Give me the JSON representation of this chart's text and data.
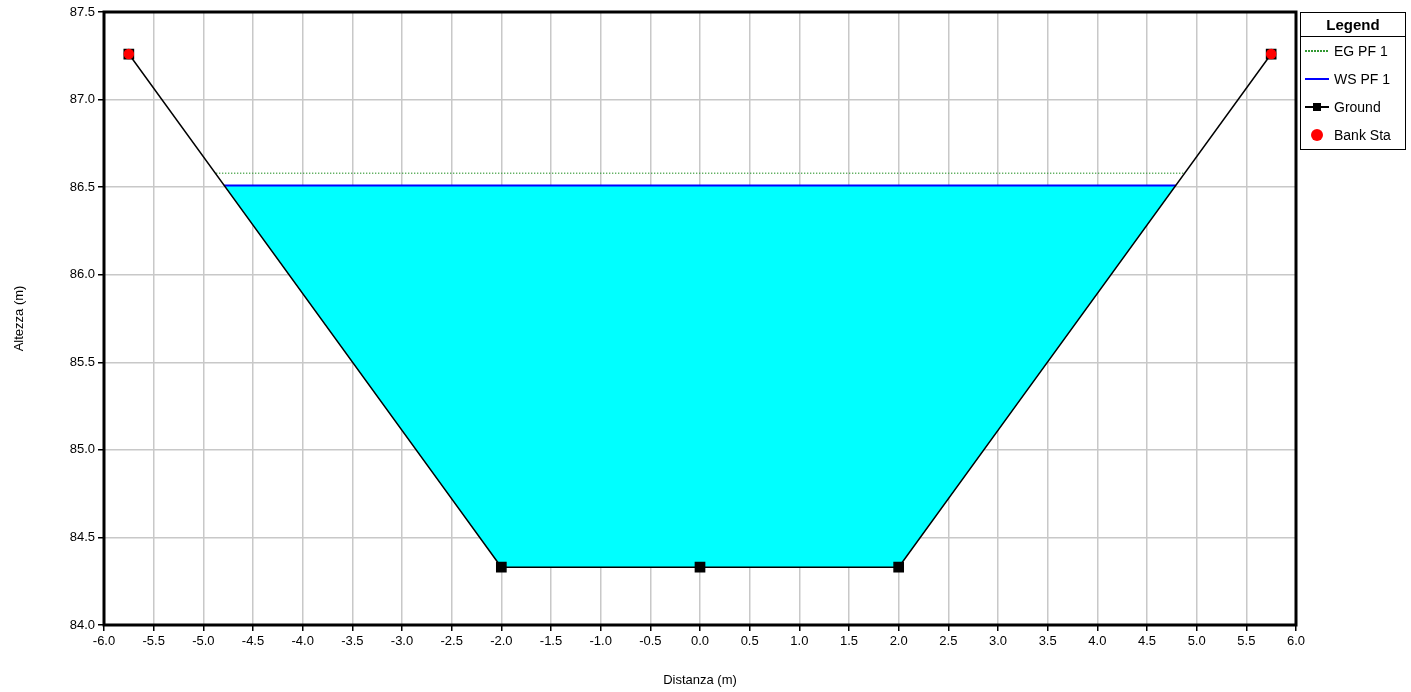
{
  "chart_data": {
    "type": "line",
    "xlabel": "Distanza (m)",
    "ylabel": "Altezza (m)",
    "legend_title": "Legend",
    "legend": "top right",
    "grid": true,
    "xlim": [
      -6,
      6
    ],
    "ylim": [
      84,
      87.5
    ],
    "xticks": [
      {
        "value": -6,
        "label": "-6.0"
      },
      {
        "value": -5.5,
        "label": "-5.5"
      },
      {
        "value": -5,
        "label": "-5.0"
      },
      {
        "value": -4.5,
        "label": "-4.5"
      },
      {
        "value": -4,
        "label": "-4.0"
      },
      {
        "value": -3.5,
        "label": "-3.5"
      },
      {
        "value": -3,
        "label": "-3.0"
      },
      {
        "value": -2.5,
        "label": "-2.5"
      },
      {
        "value": -2,
        "label": "-2.0"
      },
      {
        "value": -1.5,
        "label": "-1.5"
      },
      {
        "value": -1,
        "label": "-1.0"
      },
      {
        "value": -0.5,
        "label": "-0.5"
      },
      {
        "value": 0,
        "label": "0.0"
      },
      {
        "value": 0.5,
        "label": "0.5"
      },
      {
        "value": 1,
        "label": "1.0"
      },
      {
        "value": 1.5,
        "label": "1.5"
      },
      {
        "value": 2,
        "label": "2.0"
      },
      {
        "value": 2.5,
        "label": "2.5"
      },
      {
        "value": 3,
        "label": "3.0"
      },
      {
        "value": 3.5,
        "label": "3.5"
      },
      {
        "value": 4,
        "label": "4.0"
      },
      {
        "value": 4.5,
        "label": "4.5"
      },
      {
        "value": 5,
        "label": "5.0"
      },
      {
        "value": 5.5,
        "label": "5.5"
      },
      {
        "value": 6,
        "label": "6.0"
      }
    ],
    "yticks": [
      {
        "value": 84,
        "label": "84.0"
      },
      {
        "value": 84.5,
        "label": "84.5"
      },
      {
        "value": 85,
        "label": "85.0"
      },
      {
        "value": 85.5,
        "label": "85.5"
      },
      {
        "value": 86,
        "label": "86.0"
      },
      {
        "value": 86.5,
        "label": "86.5"
      },
      {
        "value": 87,
        "label": "87.0"
      },
      {
        "value": 87.5,
        "label": "87.5"
      }
    ],
    "series": [
      {
        "name": "EG PF 1",
        "type": "line",
        "line_style": "dotted",
        "marker": "none",
        "color": "#339933",
        "x": [
          -4.87,
          4.87
        ],
        "values": [
          86.58,
          86.58
        ]
      },
      {
        "name": "WS PF 1",
        "type": "area",
        "marker": "none",
        "color": "#0000ff",
        "x": [
          -4.79,
          4.79
        ],
        "values": [
          86.51,
          86.51
        ]
      },
      {
        "name": "Ground",
        "type": "line",
        "marker": "square",
        "color": "#000000",
        "x": [
          -5.75,
          -2,
          0,
          2,
          5.75
        ],
        "values": [
          87.26,
          84.33,
          84.33,
          84.33,
          87.26
        ]
      },
      {
        "name": "Bank Sta",
        "type": "scatter",
        "marker": "circle",
        "color": "#ff0000",
        "x": [
          -5.75,
          5.75
        ],
        "values": [
          87.26,
          87.26
        ]
      }
    ]
  }
}
